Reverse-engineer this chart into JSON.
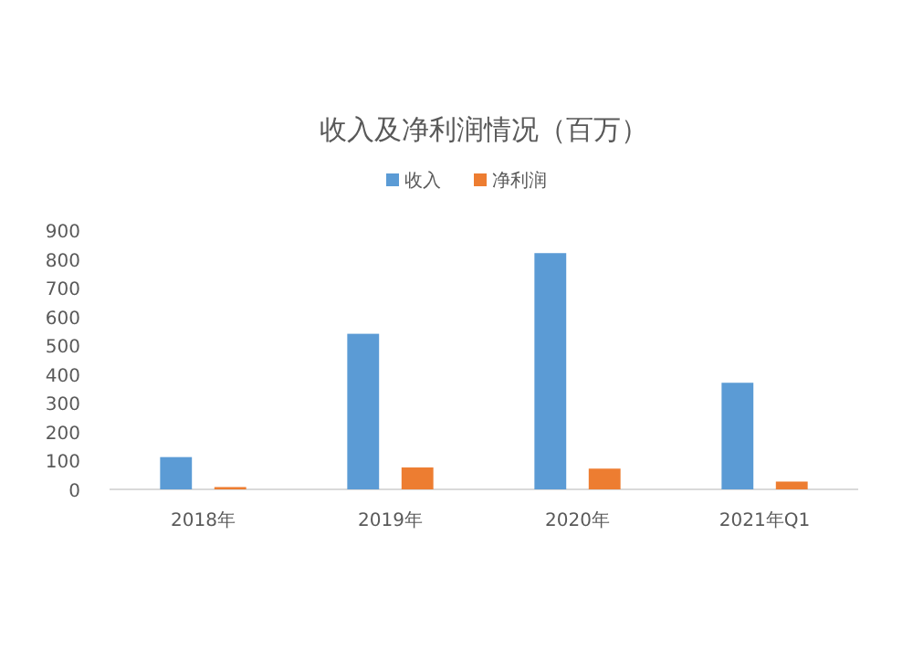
{
  "chart_data": {
    "type": "bar",
    "title": "收入及净利润情况（百万）",
    "categories": [
      "2018年",
      "2019年",
      "2020年",
      "2021年Q1"
    ],
    "series": [
      {
        "name": "收入",
        "color": "#5b9bd5",
        "values": [
          112,
          540,
          820,
          370
        ]
      },
      {
        "name": "净利润",
        "color": "#ed7d31",
        "values": [
          8,
          76,
          72,
          27
        ]
      }
    ],
    "ylim": [
      0,
      900
    ],
    "yticks": [
      0,
      100,
      200,
      300,
      400,
      500,
      600,
      700,
      800,
      900
    ],
    "grid": false,
    "legend": "top"
  }
}
